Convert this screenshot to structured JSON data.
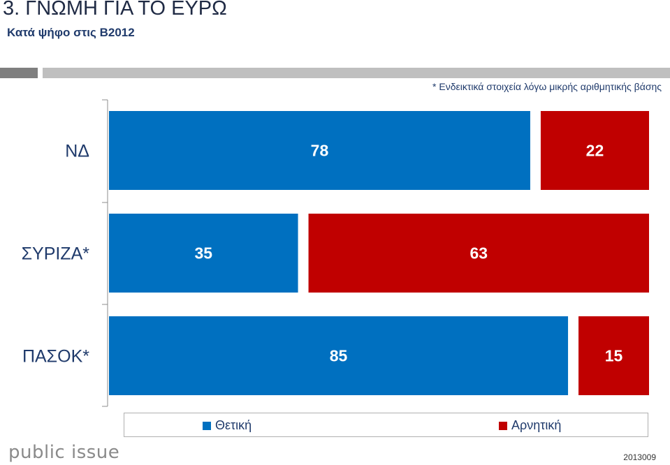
{
  "header": {
    "title": "3. ΓΝΩΜΗ ΓΙΑ ΤΟ ΕΥΡΩ",
    "subtitle": "Κατά ψήφο στις Β2012",
    "band_dark_color": "#7f7f7f",
    "band_light_color": "#bfbfbf"
  },
  "note": "* Ενδεικτικά στοιχεία λόγω μικρής αριθμητικής βάσης",
  "chart_data": {
    "type": "bar",
    "orientation": "horizontal",
    "stacked": true,
    "categories": [
      "ΝΔ",
      "ΣΥΡΙΖΑ*",
      "ΠΑΣΟΚ*"
    ],
    "series": [
      {
        "name": "Θετική",
        "values": [
          78,
          35,
          85
        ],
        "color": "#0070c0"
      },
      {
        "name": "Αρνητική",
        "values": [
          22,
          63,
          15
        ],
        "color": "#c00000"
      }
    ],
    "xlim": [
      0,
      100
    ],
    "data_labels": true,
    "legend_position": "bottom"
  },
  "footer": {
    "logo": "public issue",
    "code": "2013009"
  }
}
